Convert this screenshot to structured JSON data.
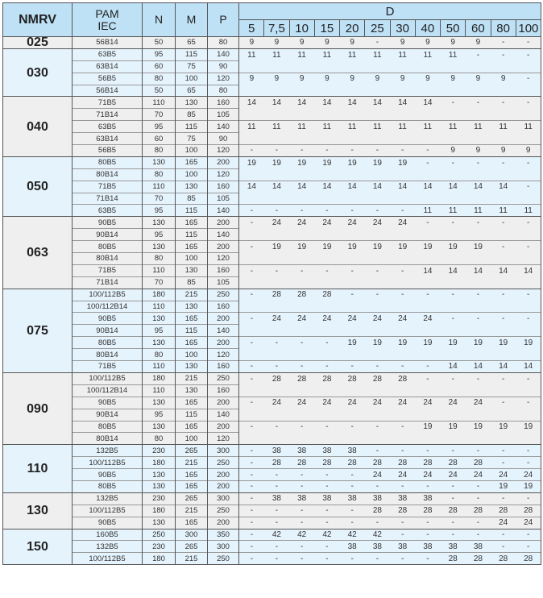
{
  "header": {
    "nmrv": "NMRV",
    "pam": "PAM",
    "iec": "IEC",
    "n": "N",
    "m": "M",
    "p": "P",
    "d": "D",
    "d_cols": [
      "5",
      "7,5",
      "10",
      "15",
      "20",
      "25",
      "30",
      "40",
      "50",
      "60",
      "80",
      "100"
    ]
  },
  "colors": {
    "header_bg": "#bfe1f6",
    "gray_group": "#efefef",
    "blue_group": "#e5f3fc"
  },
  "groups": [
    {
      "nmrv": "025",
      "rows": [
        {
          "pam": "56B14",
          "n": "50",
          "m": "65",
          "p": "80",
          "d": [
            "9",
            "9",
            "9",
            "9",
            "9",
            "-",
            "9",
            "9",
            "9",
            "9",
            "-",
            "-"
          ]
        }
      ]
    },
    {
      "nmrv": "030",
      "rows": [
        {
          "pam": "63B5",
          "n": "95",
          "m": "115",
          "p": "140",
          "d": [
            "11",
            "11",
            "11",
            "11",
            "11",
            "11",
            "11",
            "11",
            "11",
            "-",
            "-",
            "-"
          ]
        },
        {
          "pam": "63B14",
          "n": "60",
          "m": "75",
          "p": "90",
          "d": null
        },
        {
          "pam": "56B5",
          "n": "80",
          "m": "100",
          "p": "120",
          "d": [
            "9",
            "9",
            "9",
            "9",
            "9",
            "9",
            "9",
            "9",
            "9",
            "9",
            "9",
            "-"
          ]
        },
        {
          "pam": "56B14",
          "n": "50",
          "m": "65",
          "p": "80",
          "d": null
        }
      ]
    },
    {
      "nmrv": "040",
      "rows": [
        {
          "pam": "71B5",
          "n": "110",
          "m": "130",
          "p": "160",
          "d": [
            "14",
            "14",
            "14",
            "14",
            "14",
            "14",
            "14",
            "14",
            "-",
            "-",
            "-",
            "-"
          ]
        },
        {
          "pam": "71B14",
          "n": "70",
          "m": "85",
          "p": "105",
          "d": null
        },
        {
          "pam": "63B5",
          "n": "95",
          "m": "115",
          "p": "140",
          "d": [
            "11",
            "11",
            "11",
            "11",
            "11",
            "11",
            "11",
            "11",
            "11",
            "11",
            "11",
            "11"
          ]
        },
        {
          "pam": "63B14",
          "n": "60",
          "m": "75",
          "p": "90",
          "d": null
        },
        {
          "pam": "56B5",
          "n": "80",
          "m": "100",
          "p": "120",
          "d": [
            "-",
            "-",
            "-",
            "-",
            "-",
            "-",
            "-",
            "-",
            "9",
            "9",
            "9",
            "9"
          ]
        }
      ]
    },
    {
      "nmrv": "050",
      "rows": [
        {
          "pam": "80B5",
          "n": "130",
          "m": "165",
          "p": "200",
          "d": [
            "19",
            "19",
            "19",
            "19",
            "19",
            "19",
            "19",
            "-",
            "-",
            "-",
            "-",
            "-"
          ]
        },
        {
          "pam": "80B14",
          "n": "80",
          "m": "100",
          "p": "120",
          "d": null
        },
        {
          "pam": "71B5",
          "n": "110",
          "m": "130",
          "p": "160",
          "d": [
            "14",
            "14",
            "14",
            "14",
            "14",
            "14",
            "14",
            "14",
            "14",
            "14",
            "14",
            "-"
          ]
        },
        {
          "pam": "71B14",
          "n": "70",
          "m": "85",
          "p": "105",
          "d": null
        },
        {
          "pam": "63B5",
          "n": "95",
          "m": "115",
          "p": "140",
          "d": [
            "-",
            "-",
            "-",
            "-",
            "-",
            "-",
            "-",
            "11",
            "11",
            "11",
            "11",
            "11"
          ]
        }
      ]
    },
    {
      "nmrv": "063",
      "rows": [
        {
          "pam": "90B5",
          "n": "130",
          "m": "165",
          "p": "200",
          "d": [
            "-",
            "24",
            "24",
            "24",
            "24",
            "24",
            "24",
            "-",
            "-",
            "-",
            "-",
            "-"
          ]
        },
        {
          "pam": "90B14",
          "n": "95",
          "m": "115",
          "p": "140",
          "d": null
        },
        {
          "pam": "80B5",
          "n": "130",
          "m": "165",
          "p": "200",
          "d": [
            "-",
            "19",
            "19",
            "19",
            "19",
            "19",
            "19",
            "19",
            "19",
            "19",
            "-",
            "-"
          ]
        },
        {
          "pam": "80B14",
          "n": "80",
          "m": "100",
          "p": "120",
          "d": null
        },
        {
          "pam": "71B5",
          "n": "110",
          "m": "130",
          "p": "160",
          "d": [
            "-",
            "-",
            "-",
            "-",
            "-",
            "-",
            "-",
            "14",
            "14",
            "14",
            "14",
            "14"
          ]
        },
        {
          "pam": "71B14",
          "n": "70",
          "m": "85",
          "p": "105",
          "d": null
        }
      ]
    },
    {
      "nmrv": "075",
      "rows": [
        {
          "pam": "100/112B5",
          "n": "180",
          "m": "215",
          "p": "250",
          "d": [
            "-",
            "28",
            "28",
            "28",
            "-",
            "-",
            "-",
            "-",
            "-",
            "-",
            "-",
            "-"
          ]
        },
        {
          "pam": "100/112B14",
          "n": "110",
          "m": "130",
          "p": "160",
          "d": null
        },
        {
          "pam": "90B5",
          "n": "130",
          "m": "165",
          "p": "200",
          "d": [
            "-",
            "24",
            "24",
            "24",
            "24",
            "24",
            "24",
            "24",
            "-",
            "-",
            "-",
            "-"
          ]
        },
        {
          "pam": "90B14",
          "n": "95",
          "m": "115",
          "p": "140",
          "d": null
        },
        {
          "pam": "80B5",
          "n": "130",
          "m": "165",
          "p": "200",
          "d": [
            "-",
            "-",
            "-",
            "-",
            "19",
            "19",
            "19",
            "19",
            "19",
            "19",
            "19",
            "19"
          ]
        },
        {
          "pam": "80B14",
          "n": "80",
          "m": "100",
          "p": "120",
          "d": null
        },
        {
          "pam": "71B5",
          "n": "110",
          "m": "130",
          "p": "160",
          "d": [
            "-",
            "-",
            "-",
            "-",
            "-",
            "-",
            "-",
            "-",
            "14",
            "14",
            "14",
            "14"
          ]
        }
      ]
    },
    {
      "nmrv": "090",
      "rows": [
        {
          "pam": "100/112B5",
          "n": "180",
          "m": "215",
          "p": "250",
          "d": [
            "-",
            "28",
            "28",
            "28",
            "28",
            "28",
            "28",
            "-",
            "-",
            "-",
            "-",
            "-"
          ]
        },
        {
          "pam": "100/112B14",
          "n": "110",
          "m": "130",
          "p": "160",
          "d": null
        },
        {
          "pam": "90B5",
          "n": "130",
          "m": "165",
          "p": "200",
          "d": [
            "-",
            "24",
            "24",
            "24",
            "24",
            "24",
            "24",
            "24",
            "24",
            "24",
            "-",
            "-"
          ]
        },
        {
          "pam": "90B14",
          "n": "95",
          "m": "115",
          "p": "140",
          "d": null
        },
        {
          "pam": "80B5",
          "n": "130",
          "m": "165",
          "p": "200",
          "d": [
            "-",
            "-",
            "-",
            "-",
            "-",
            "-",
            "-",
            "19",
            "19",
            "19",
            "19",
            "19"
          ]
        },
        {
          "pam": "80B14",
          "n": "80",
          "m": "100",
          "p": "120",
          "d": null
        }
      ]
    },
    {
      "nmrv": "110",
      "rows": [
        {
          "pam": "132B5",
          "n": "230",
          "m": "265",
          "p": "300",
          "d": [
            "-",
            "38",
            "38",
            "38",
            "38",
            "-",
            "-",
            "-",
            "-",
            "-",
            "-",
            "-"
          ]
        },
        {
          "pam": "100/112B5",
          "n": "180",
          "m": "215",
          "p": "250",
          "d": [
            "-",
            "28",
            "28",
            "28",
            "28",
            "28",
            "28",
            "28",
            "28",
            "28",
            "-",
            "-"
          ]
        },
        {
          "pam": "90B5",
          "n": "130",
          "m": "165",
          "p": "200",
          "d": [
            "-",
            "-",
            "-",
            "-",
            "-",
            "24",
            "24",
            "24",
            "24",
            "24",
            "24",
            "24"
          ]
        },
        {
          "pam": "80B5",
          "n": "130",
          "m": "165",
          "p": "200",
          "d": [
            "-",
            "-",
            "-",
            "-",
            "-",
            "-",
            "-",
            "-",
            "-",
            "-",
            "19",
            "19"
          ]
        }
      ]
    },
    {
      "nmrv": "130",
      "rows": [
        {
          "pam": "132B5",
          "n": "230",
          "m": "265",
          "p": "300",
          "d": [
            "-",
            "38",
            "38",
            "38",
            "38",
            "38",
            "38",
            "38",
            "-",
            "-",
            "-",
            "-"
          ]
        },
        {
          "pam": "100/112B5",
          "n": "180",
          "m": "215",
          "p": "250",
          "d": [
            "-",
            "-",
            "-",
            "-",
            "-",
            "28",
            "28",
            "28",
            "28",
            "28",
            "28",
            "28"
          ]
        },
        {
          "pam": "90B5",
          "n": "130",
          "m": "165",
          "p": "200",
          "d": [
            "-",
            "-",
            "-",
            "-",
            "-",
            "-",
            "-",
            "-",
            "-",
            "-",
            "24",
            "24"
          ]
        }
      ]
    },
    {
      "nmrv": "150",
      "rows": [
        {
          "pam": "160B5",
          "n": "250",
          "m": "300",
          "p": "350",
          "d": [
            "-",
            "42",
            "42",
            "42",
            "42",
            "42",
            "-",
            "-",
            "-",
            "-",
            "-",
            "-"
          ]
        },
        {
          "pam": "132B5",
          "n": "230",
          "m": "265",
          "p": "300",
          "d": [
            "-",
            "-",
            "-",
            "-",
            "38",
            "38",
            "38",
            "38",
            "38",
            "38",
            "-",
            "-"
          ]
        },
        {
          "pam": "100/112B5",
          "n": "180",
          "m": "215",
          "p": "250",
          "d": [
            "-",
            "-",
            "-",
            "-",
            "-",
            "-",
            "-",
            "-",
            "28",
            "28",
            "28",
            "28"
          ]
        }
      ]
    }
  ]
}
